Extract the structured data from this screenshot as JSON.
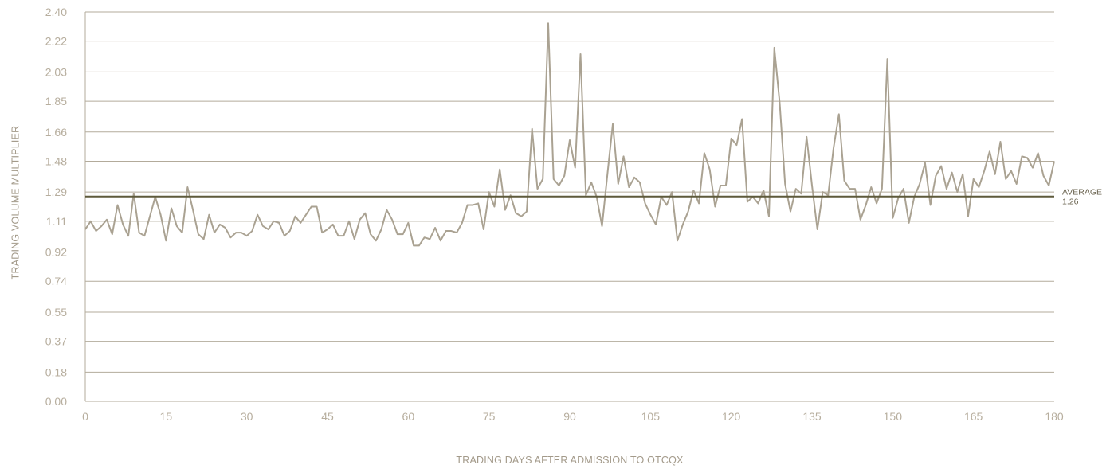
{
  "chart_data": {
    "type": "line",
    "title": "",
    "xlabel": "TRADING DAYS AFTER ADMISSION TO OTCQX",
    "ylabel": "TRADING VOLUME MULTIPLIER",
    "xlim": [
      0,
      180
    ],
    "ylim": [
      0,
      2.4
    ],
    "x_ticks": [
      "0",
      "15",
      "30",
      "45",
      "60",
      "75",
      "90",
      "105",
      "120",
      "135",
      "150",
      "165",
      "180"
    ],
    "y_ticks": [
      "0.00",
      "0.18",
      "0.37",
      "0.55",
      "0.74",
      "0.92",
      "1.11",
      "1.29",
      "1.48",
      "1.66",
      "1.85",
      "2.03",
      "2.22",
      "2.40"
    ],
    "grid": "horizontal",
    "colors": {
      "series": "#aaa292",
      "average": "#5e5a3b",
      "grid": "#b3ab9b",
      "tick_text": "#b7ae9e"
    },
    "series": [
      {
        "x": [
          0,
          1,
          2,
          3,
          4,
          5,
          6,
          7,
          8,
          9,
          10,
          11,
          12,
          13,
          14,
          15,
          16,
          17,
          18,
          19,
          20,
          21,
          22,
          23,
          24,
          25,
          26,
          27,
          28,
          29,
          30,
          31,
          32,
          33,
          34,
          35,
          36,
          37,
          38,
          39,
          40,
          41,
          42,
          43,
          44,
          45,
          46,
          47,
          48,
          49,
          50,
          51,
          52,
          53,
          54,
          55,
          56,
          57,
          58,
          59,
          60,
          61,
          62,
          63,
          64,
          65,
          66,
          67,
          68,
          69,
          70,
          71,
          72,
          73,
          74,
          75,
          76,
          77,
          78,
          79,
          80,
          81,
          82,
          83,
          84,
          85,
          86,
          87,
          88,
          89,
          90,
          91,
          92,
          93,
          94,
          95,
          96,
          97,
          98,
          99,
          100,
          101,
          102,
          103,
          104,
          105,
          106,
          107,
          108,
          109,
          110,
          111,
          112,
          113,
          114,
          115,
          116,
          117,
          118,
          119,
          120,
          121,
          122,
          123,
          124,
          125,
          126,
          127,
          128,
          129,
          130,
          131,
          132,
          133,
          134,
          135,
          136,
          137,
          138,
          139,
          140,
          141,
          142,
          143,
          144,
          145,
          146,
          147,
          148,
          149,
          150,
          151,
          152,
          153,
          154,
          155,
          156,
          157,
          158,
          159,
          160,
          161,
          162,
          163,
          164,
          165,
          166,
          167,
          168,
          169,
          170,
          171,
          172,
          173,
          174,
          175,
          176,
          177,
          178,
          179,
          180
        ],
        "values": [
          1.06,
          1.11,
          1.05,
          1.08,
          1.12,
          1.03,
          1.21,
          1.09,
          1.02,
          1.28,
          1.04,
          1.02,
          1.14,
          1.26,
          1.15,
          0.99,
          1.19,
          1.08,
          1.04,
          1.32,
          1.18,
          1.03,
          1.0,
          1.15,
          1.04,
          1.09,
          1.07,
          1.01,
          1.04,
          1.04,
          1.02,
          1.05,
          1.15,
          1.08,
          1.06,
          1.11,
          1.1,
          1.02,
          1.05,
          1.14,
          1.1,
          1.15,
          1.2,
          1.2,
          1.04,
          1.06,
          1.09,
          1.02,
          1.02,
          1.11,
          1.0,
          1.12,
          1.16,
          1.03,
          0.99,
          1.06,
          1.18,
          1.12,
          1.03,
          1.03,
          1.1,
          0.96,
          0.96,
          1.01,
          1.0,
          1.07,
          0.99,
          1.05,
          1.05,
          1.04,
          1.1,
          1.21,
          1.21,
          1.22,
          1.06,
          1.29,
          1.2,
          1.43,
          1.18,
          1.27,
          1.16,
          1.14,
          1.17,
          1.68,
          1.31,
          1.37,
          2.33,
          1.37,
          1.33,
          1.39,
          1.61,
          1.44,
          2.14,
          1.27,
          1.35,
          1.26,
          1.08,
          1.4,
          1.71,
          1.34,
          1.51,
          1.32,
          1.38,
          1.35,
          1.22,
          1.15,
          1.09,
          1.26,
          1.21,
          1.29,
          0.99,
          1.09,
          1.17,
          1.3,
          1.22,
          1.53,
          1.43,
          1.2,
          1.33,
          1.33,
          1.62,
          1.58,
          1.74,
          1.23,
          1.26,
          1.22,
          1.3,
          1.14,
          2.18,
          1.84,
          1.34,
          1.17,
          1.31,
          1.28,
          1.63,
          1.33,
          1.06,
          1.29,
          1.27,
          1.56,
          1.77,
          1.36,
          1.31,
          1.31,
          1.12,
          1.21,
          1.32,
          1.22,
          1.31,
          2.11,
          1.13,
          1.25,
          1.31,
          1.1,
          1.26,
          1.34,
          1.47,
          1.21,
          1.39,
          1.45,
          1.31,
          1.41,
          1.29,
          1.4,
          1.14,
          1.37,
          1.32,
          1.42,
          1.54,
          1.4,
          1.6,
          1.37,
          1.42,
          1.34,
          1.51,
          1.5,
          1.44,
          1.53,
          1.39,
          1.33,
          1.48
        ]
      }
    ],
    "average": {
      "value": 1.26,
      "label": "AVERAGE",
      "value_label": "1.26"
    }
  }
}
